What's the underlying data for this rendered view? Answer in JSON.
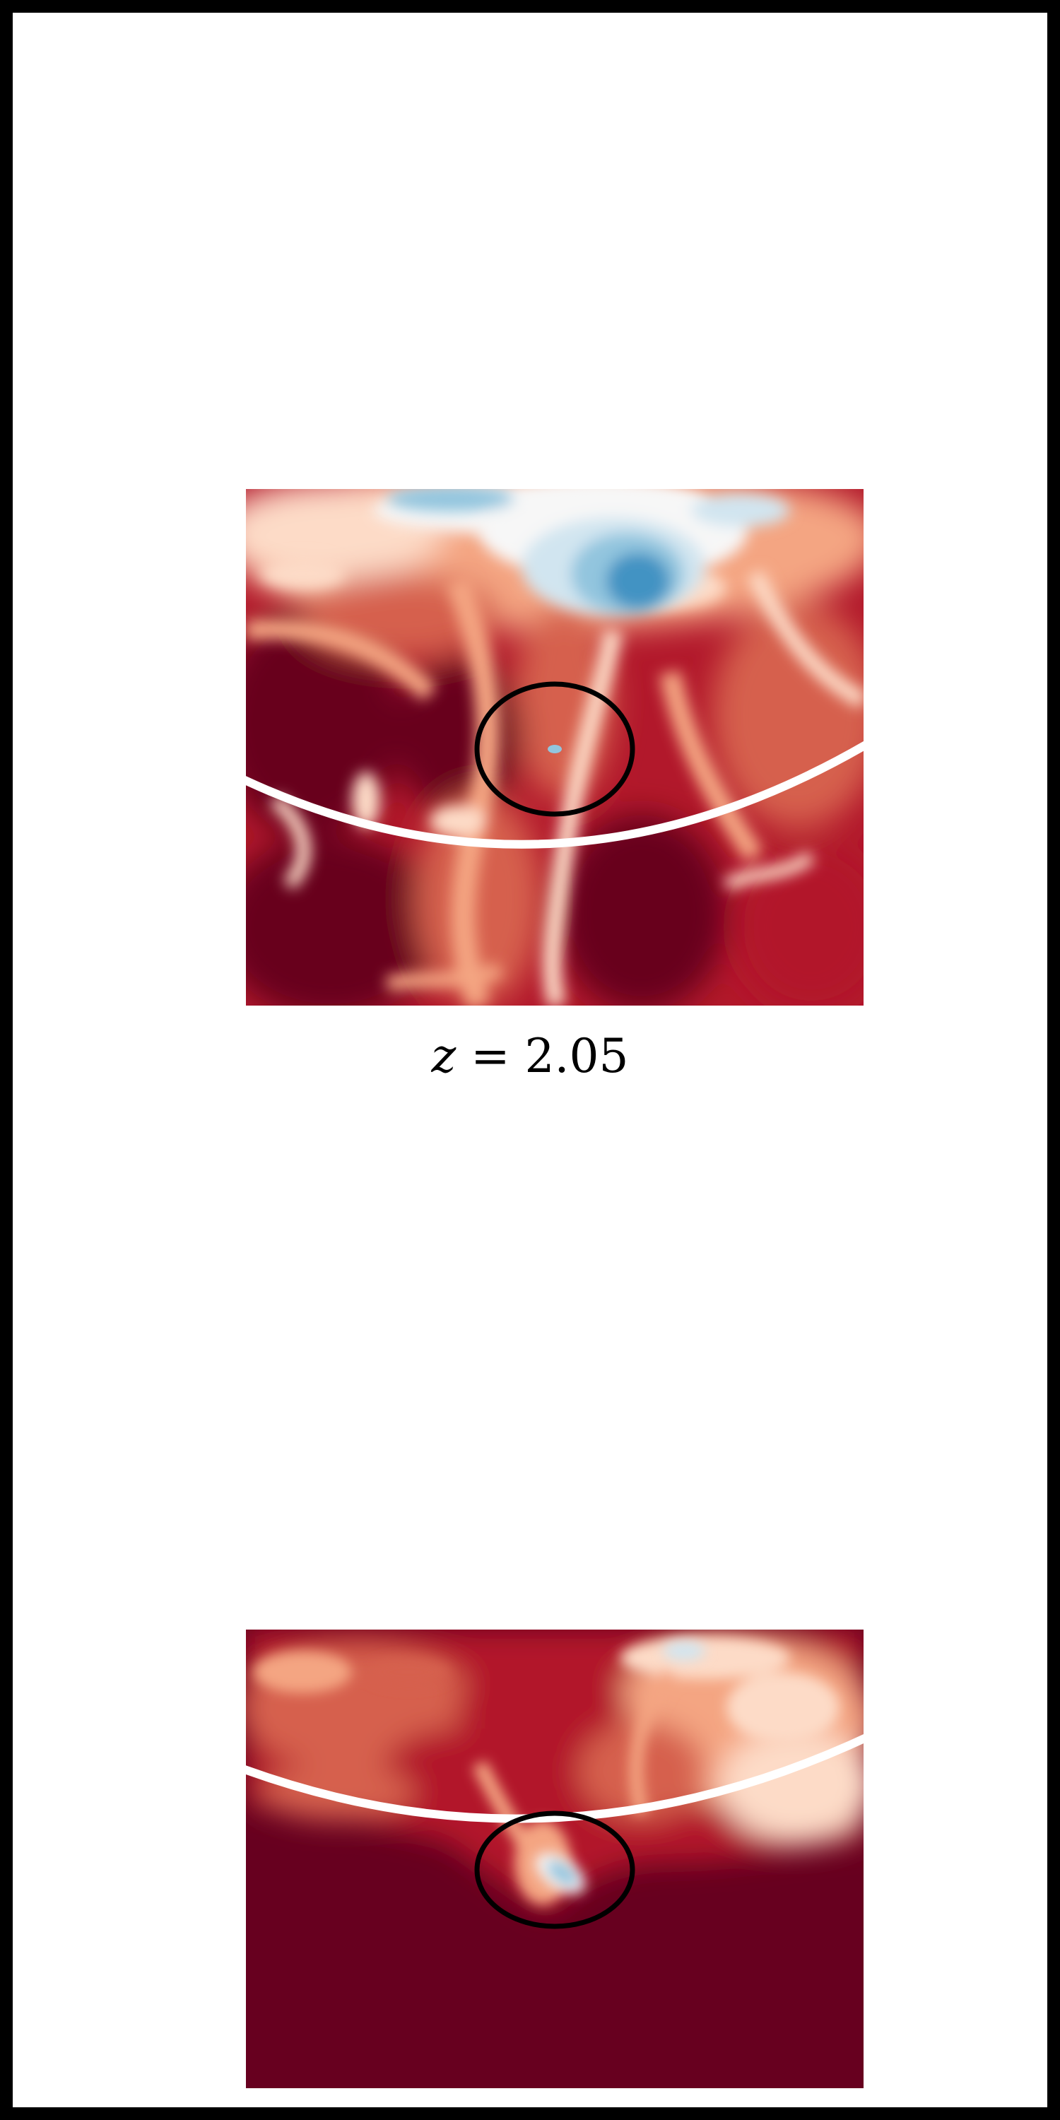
{
  "figure": {
    "colors": {
      "frame": "#000000",
      "background": "#ffffff",
      "deep_red": "#67001f",
      "red": "#b2182b",
      "light_red": "#d6604d",
      "salmon": "#f4a582",
      "pale": "#fddbc7",
      "white": "#f7f7f7",
      "light_blue": "#d1e5f0",
      "blue": "#92c5de",
      "mid_blue": "#4393c3",
      "arc": "#ffffff",
      "marker": "#000000"
    },
    "label": {
      "variable": "z",
      "equals": " = ",
      "value": "2.05"
    },
    "panels": [
      {
        "name": "top-panel",
        "overlays": [
          "white-arc",
          "black-ellipse"
        ]
      },
      {
        "name": "bottom-panel",
        "overlays": [
          "white-arc",
          "black-ellipse"
        ]
      }
    ]
  }
}
